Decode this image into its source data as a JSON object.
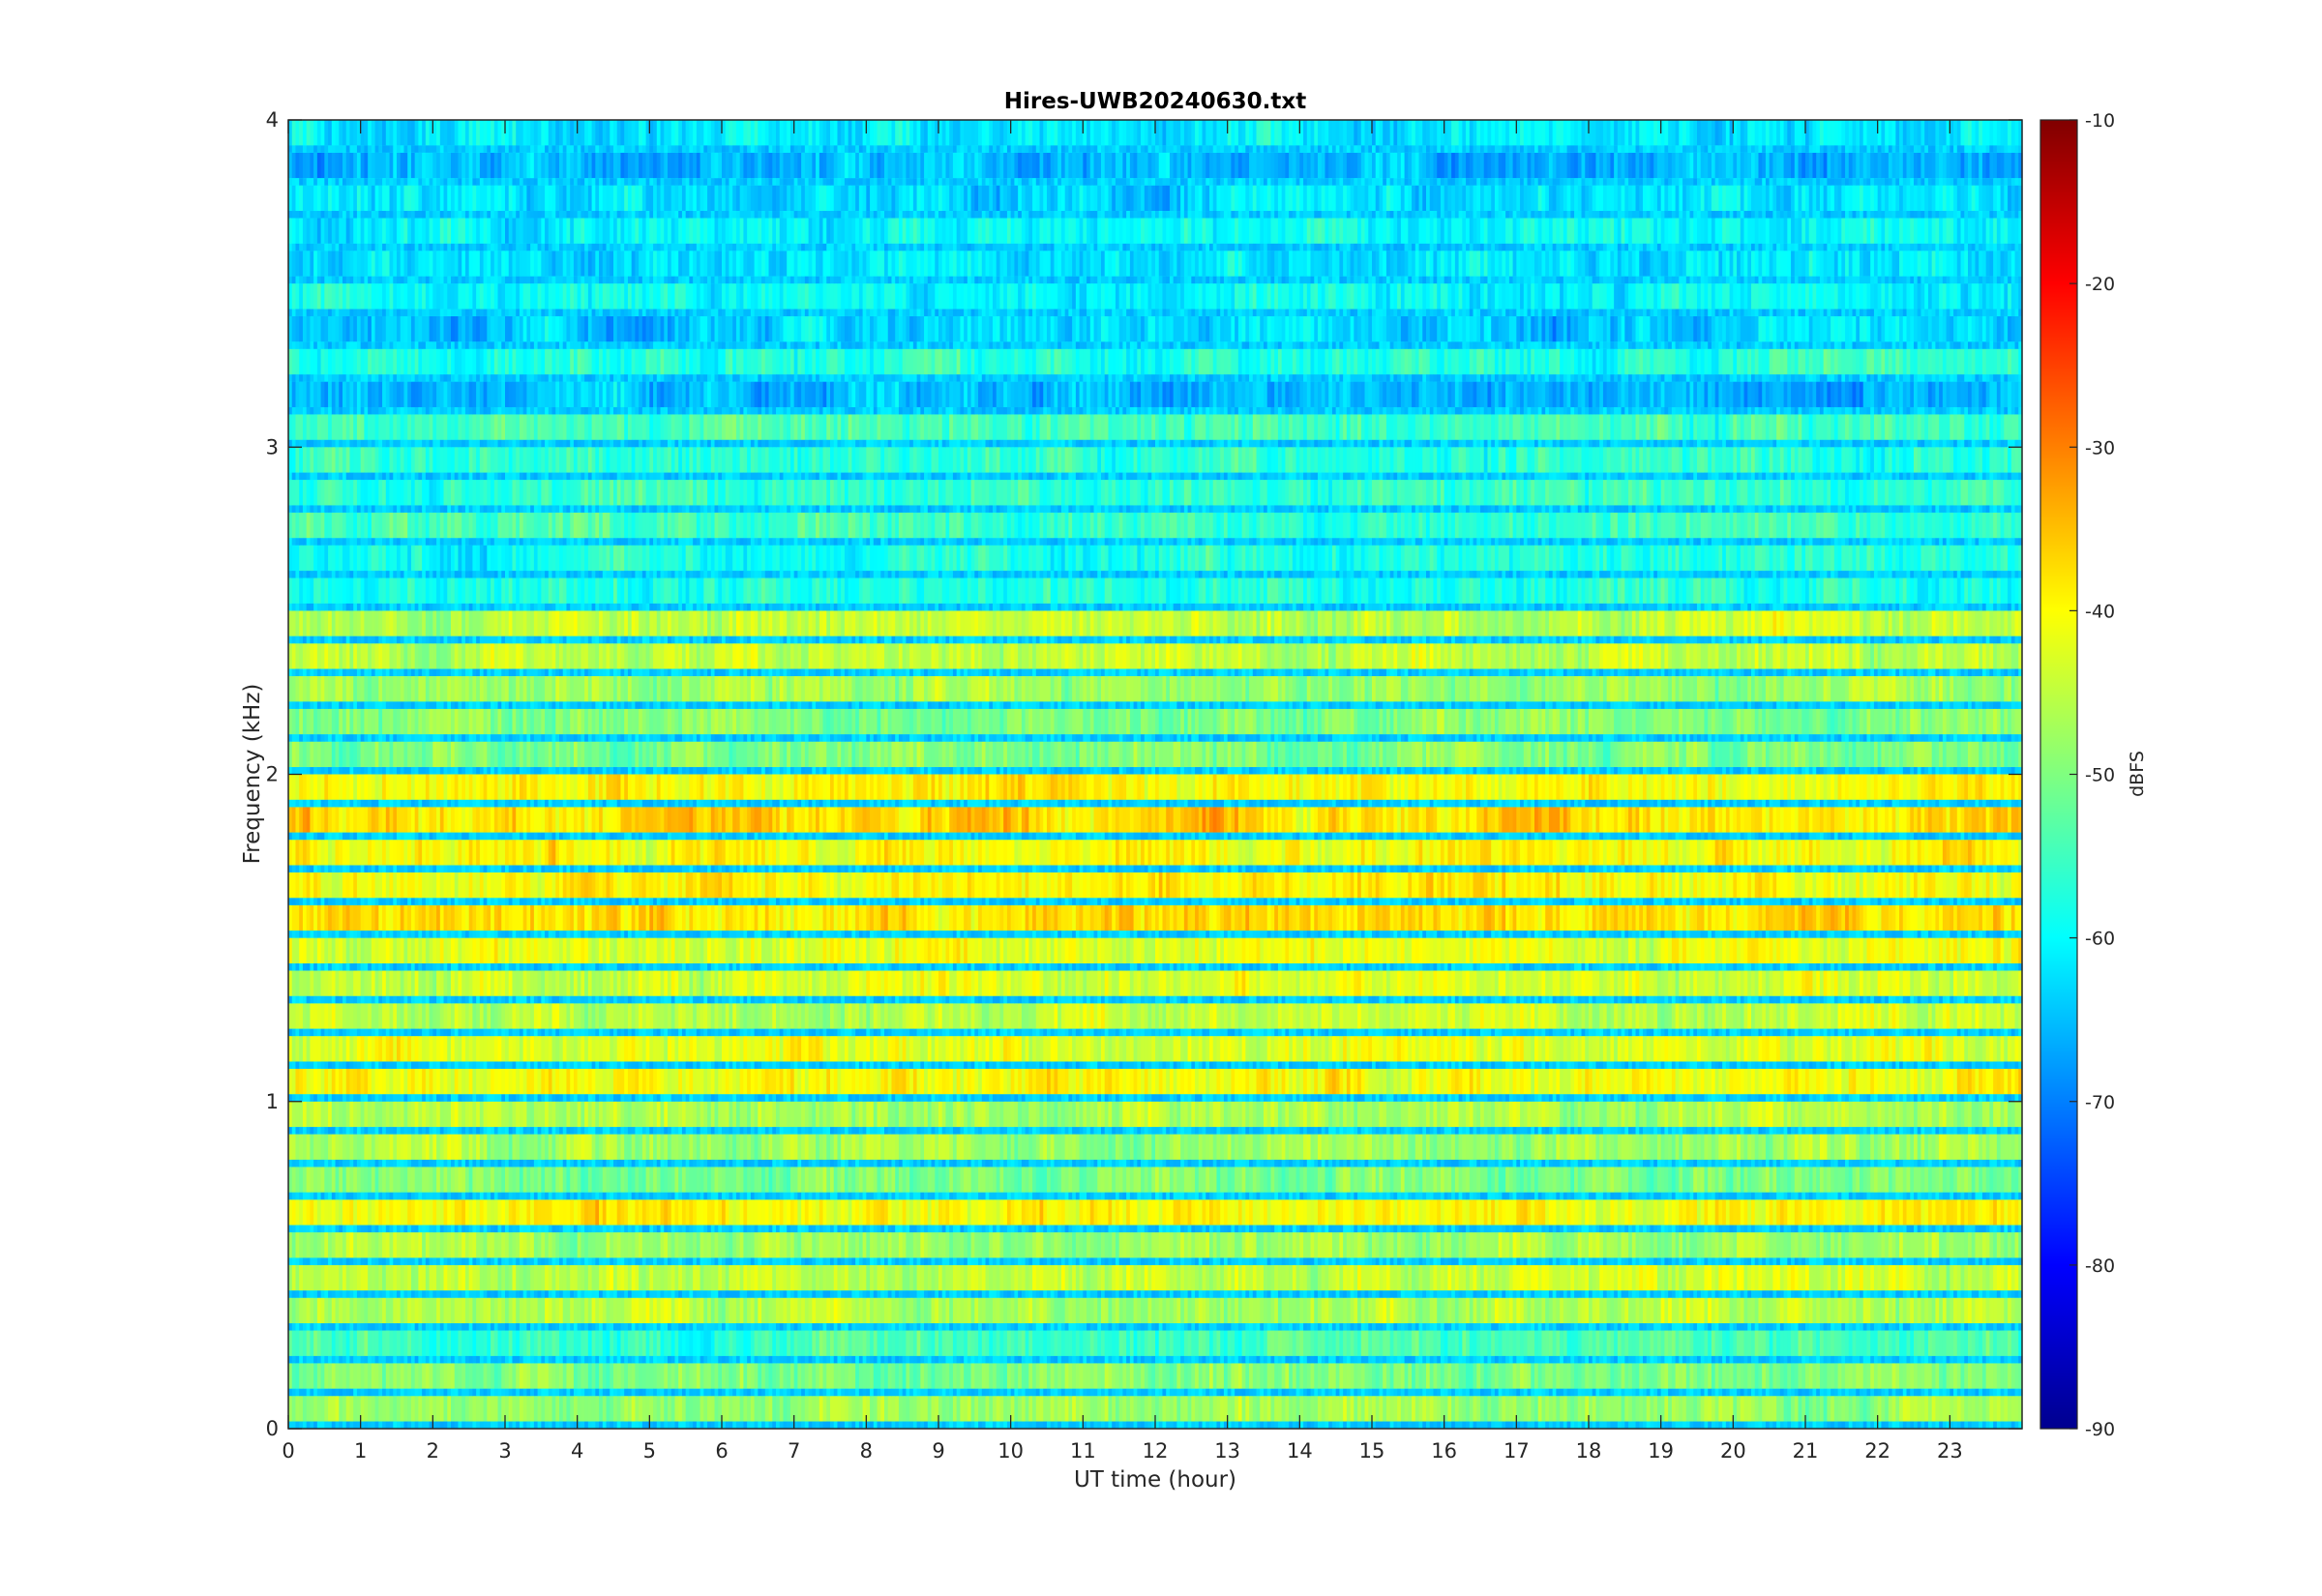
{
  "chart_data": {
    "type": "heatmap",
    "title": "Hires-UWB20240630.txt",
    "xlabel": "UT time (hour)",
    "ylabel": "Frequency (kHz)",
    "xlim": [
      0,
      24
    ],
    "ylim": [
      0,
      4
    ],
    "x_ticks": [
      0,
      1,
      2,
      3,
      4,
      5,
      6,
      7,
      8,
      9,
      10,
      11,
      12,
      13,
      14,
      15,
      16,
      17,
      18,
      19,
      20,
      21,
      22,
      23
    ],
    "x_tick_labels": [
      "0",
      "1",
      "2",
      "3",
      "4",
      "5",
      "6",
      "7",
      "8",
      "9",
      "10",
      "11",
      "12",
      "13",
      "14",
      "15",
      "16",
      "17",
      "18",
      "19",
      "20",
      "21",
      "22",
      "23"
    ],
    "y_ticks": [
      0,
      1,
      2,
      3,
      4
    ],
    "y_tick_labels": [
      "0",
      "1",
      "2",
      "3",
      "4"
    ],
    "colorbar": {
      "label": "dBFS",
      "colormap": "jet",
      "range": [
        -90,
        -10
      ],
      "ticks": [
        -90,
        -80,
        -70,
        -60,
        -50,
        -40,
        -30,
        -20,
        -10
      ],
      "tick_labels": [
        "-90",
        "-80",
        "-70",
        "-60",
        "-50",
        "-40",
        "-30",
        "-20",
        "-10"
      ]
    },
    "bands": [
      {
        "freq_khz": 0.05,
        "level_dbfs": -48
      },
      {
        "freq_khz": 0.15,
        "level_dbfs": -50
      },
      {
        "freq_khz": 0.25,
        "level_dbfs": -55
      },
      {
        "freq_khz": 0.35,
        "level_dbfs": -46
      },
      {
        "freq_khz": 0.45,
        "level_dbfs": -45
      },
      {
        "freq_khz": 0.55,
        "level_dbfs": -47
      },
      {
        "freq_khz": 0.65,
        "level_dbfs": -40
      },
      {
        "freq_khz": 0.75,
        "level_dbfs": -50
      },
      {
        "freq_khz": 0.85,
        "level_dbfs": -47
      },
      {
        "freq_khz": 0.95,
        "level_dbfs": -46
      },
      {
        "freq_khz": 1.05,
        "level_dbfs": -40
      },
      {
        "freq_khz": 1.15,
        "level_dbfs": -42
      },
      {
        "freq_khz": 1.25,
        "level_dbfs": -45
      },
      {
        "freq_khz": 1.35,
        "level_dbfs": -43
      },
      {
        "freq_khz": 1.45,
        "level_dbfs": -42
      },
      {
        "freq_khz": 1.55,
        "level_dbfs": -38
      },
      {
        "freq_khz": 1.65,
        "level_dbfs": -40
      },
      {
        "freq_khz": 1.75,
        "level_dbfs": -40
      },
      {
        "freq_khz": 1.85,
        "level_dbfs": -37
      },
      {
        "freq_khz": 1.95,
        "level_dbfs": -40
      },
      {
        "freq_khz": 2.05,
        "level_dbfs": -50
      },
      {
        "freq_khz": 2.15,
        "level_dbfs": -50
      },
      {
        "freq_khz": 2.25,
        "level_dbfs": -48
      },
      {
        "freq_khz": 2.35,
        "level_dbfs": -45
      },
      {
        "freq_khz": 2.45,
        "level_dbfs": -45
      },
      {
        "freq_khz": 2.55,
        "level_dbfs": -58
      },
      {
        "freq_khz": 2.65,
        "level_dbfs": -58
      },
      {
        "freq_khz": 2.75,
        "level_dbfs": -55
      },
      {
        "freq_khz": 2.85,
        "level_dbfs": -56
      },
      {
        "freq_khz": 2.95,
        "level_dbfs": -57
      },
      {
        "freq_khz": 3.05,
        "level_dbfs": -55
      },
      {
        "freq_khz": 3.15,
        "level_dbfs": -65
      },
      {
        "freq_khz": 3.25,
        "level_dbfs": -57
      },
      {
        "freq_khz": 3.35,
        "level_dbfs": -64
      },
      {
        "freq_khz": 3.45,
        "level_dbfs": -60
      },
      {
        "freq_khz": 3.55,
        "level_dbfs": -62
      },
      {
        "freq_khz": 3.65,
        "level_dbfs": -60
      },
      {
        "freq_khz": 3.75,
        "level_dbfs": -62
      },
      {
        "freq_khz": 3.85,
        "level_dbfs": -66
      },
      {
        "freq_khz": 3.95,
        "level_dbfs": -62
      }
    ]
  }
}
